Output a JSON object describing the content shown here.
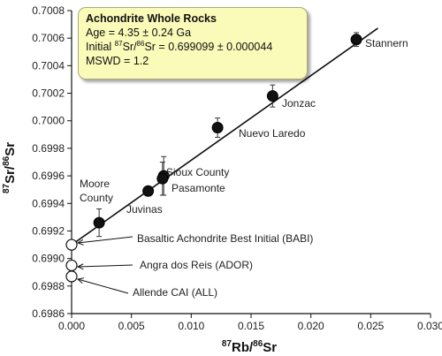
{
  "chart_data": {
    "type": "scatter",
    "xlabel": {
      "sup1": "87",
      "main1": "Rb/",
      "sup2": "86",
      "main2": "Sr"
    },
    "ylabel": {
      "sup1": "87",
      "main1": "Sr/",
      "sup2": "86",
      "main2": "Sr"
    },
    "xlim": [
      0,
      0.03
    ],
    "ylim": [
      0.6986,
      0.7008
    ],
    "xticks": [
      "0.000",
      "0.005",
      "0.010",
      "0.015",
      "0.020",
      "0.025",
      "0.030"
    ],
    "xtick_values": [
      0,
      0.005,
      0.01,
      0.015,
      0.02,
      0.025,
      0.03
    ],
    "yticks": [
      "0.6986",
      "0.6988",
      "0.6990",
      "0.6992",
      "0.6994",
      "0.6996",
      "0.6998",
      "0.7000",
      "0.7002",
      "0.7004",
      "0.7006",
      "0.7008"
    ],
    "ytick_values": [
      0.6986,
      0.6988,
      0.699,
      0.6992,
      0.6994,
      0.6996,
      0.6998,
      0.7,
      0.7002,
      0.7004,
      0.7006,
      0.7008
    ],
    "fit_line": {
      "x": [
        0,
        0.0256
      ],
      "y": [
        0.699099,
        0.700672
      ]
    },
    "filled_points": [
      {
        "label": "Stannern",
        "x": 0.0238,
        "y": 0.70059,
        "err": 5e-05
      },
      {
        "label": "Jonzac",
        "x": 0.0168,
        "y": 0.70018,
        "err": 8e-05
      },
      {
        "label": "Nuevo Laredo",
        "x": 0.0122,
        "y": 0.69995,
        "err": 7e-05
      },
      {
        "label": "Sioux County",
        "x": 0.0077,
        "y": 0.6996,
        "err": 0.00014
      },
      {
        "label": "Pasamonte",
        "x": 0.0076,
        "y": 0.69958,
        "err": 0.00012
      },
      {
        "label": "Juvinas",
        "x": 0.0064,
        "y": 0.69949,
        "err": 2e-05
      },
      {
        "label": "Moore County",
        "x": 0.0023,
        "y": 0.69926,
        "err": 0.0001
      }
    ],
    "open_points": [
      {
        "label": "Basaltic Achondrite Best Initial (BABI)",
        "x": 0.0,
        "y": 0.6991
      },
      {
        "label": "Angra dos Reis (ADOR)",
        "x": 0.0,
        "y": 0.69895
      },
      {
        "label": "Allende CAI (ALL)",
        "x": 0.0,
        "y": 0.69887
      }
    ],
    "point_labels": {
      "stannern": "Stannern",
      "jonzac": "Jonzac",
      "nuevo": "Nuevo Laredo",
      "sioux": "Sioux County",
      "pasamonte": "Pasamonte",
      "juvinas": "Juvinas",
      "moore1": "Moore",
      "moore2": "County",
      "babi": "Basaltic Achondrite Best Initial (BABI)",
      "ador": "Angra dos Reis (ADOR)",
      "all": "Allende CAI (ALL)"
    },
    "legend": {
      "title": "Achondrite Whole Rocks",
      "age_text": "Age = 4.35 ± 0.24 Ga",
      "initial_prefix": "Initial ",
      "initial_sup1": "87",
      "initial_mid": "Sr/",
      "initial_sup2": "86",
      "initial_rest": "Sr = 0.699099 ± 0.000044",
      "mswd": "MSWD = 1.2"
    },
    "colors": {
      "filled": "#111111",
      "open": "#ffffff",
      "line": "#111111",
      "legend_bg": "#fafab9"
    }
  }
}
